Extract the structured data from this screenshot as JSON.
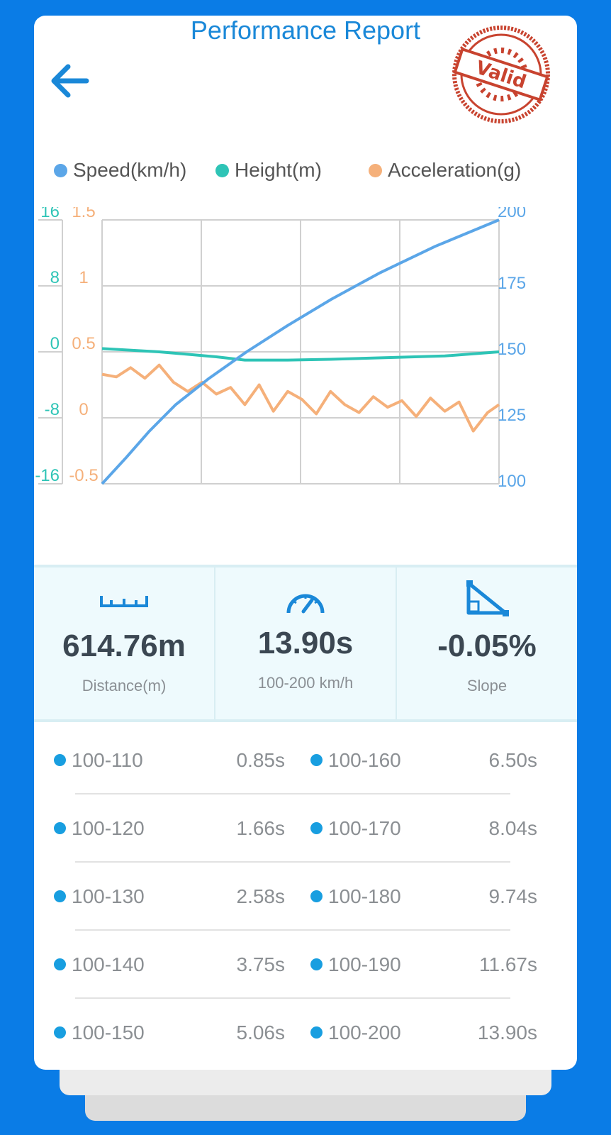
{
  "header": {
    "title": "Performance Report",
    "stamp_text": "Valid"
  },
  "legend": [
    {
      "label": "Speed(km/h)",
      "color": "#5ba6e8"
    },
    {
      "label": "Height(m)",
      "color": "#2ec4b6"
    },
    {
      "label": "Acceleration(g)",
      "color": "#f5b07a"
    }
  ],
  "chart_data": {
    "type": "line",
    "series": [
      {
        "name": "Speed(km/h)",
        "color": "#5ba6e8",
        "axis": "right",
        "x": [
          0,
          0.85,
          1.66,
          2.58,
          3.75,
          5.06,
          6.5,
          8.04,
          9.74,
          11.67,
          13.9
        ],
        "values": [
          100,
          110,
          120,
          130,
          140,
          150,
          160,
          170,
          180,
          190,
          200
        ]
      },
      {
        "name": "Height(m)",
        "color": "#2ec4b6",
        "axis": "left-height",
        "x": [
          0,
          2,
          4,
          5,
          6.5,
          8,
          10,
          12,
          13.9
        ],
        "values": [
          0.4,
          0,
          -0.6,
          -1.0,
          -1.0,
          -0.9,
          -0.7,
          -0.5,
          0
        ]
      },
      {
        "name": "Acceleration(g)",
        "color": "#f5b07a",
        "axis": "left-accel",
        "x": [
          0,
          0.5,
          1,
          1.5,
          2,
          2.5,
          3,
          3.5,
          4,
          4.5,
          5,
          5.5,
          6,
          6.5,
          7,
          7.5,
          8,
          8.5,
          9,
          9.5,
          10,
          10.5,
          11,
          11.5,
          12,
          12.5,
          13,
          13.5,
          13.9
        ],
        "values": [
          0.33,
          0.31,
          0.38,
          0.3,
          0.4,
          0.27,
          0.2,
          0.27,
          0.18,
          0.23,
          0.1,
          0.25,
          0.05,
          0.2,
          0.14,
          0.03,
          0.2,
          0.1,
          0.04,
          0.16,
          0.08,
          0.13,
          0.01,
          0.15,
          0.05,
          0.12,
          -0.1,
          0.04,
          0.1
        ]
      }
    ],
    "axes": {
      "left_height": {
        "range": [
          -16,
          16
        ],
        "ticks": [
          "16",
          "8",
          "0",
          "-8",
          "-16"
        ],
        "color": "#2ec4b6"
      },
      "left_accel": {
        "range": [
          -0.5,
          1.5
        ],
        "ticks": [
          "1.5",
          "1",
          "0.5",
          "0",
          "-0.5"
        ],
        "color": "#f5b07a"
      },
      "right_speed": {
        "range": [
          100,
          200
        ],
        "ticks": [
          "200",
          "175",
          "150",
          "125",
          "100"
        ],
        "color": "#5ba6e8"
      },
      "x_range": [
        0,
        13.9
      ]
    },
    "grid": true
  },
  "stats": [
    {
      "value": "614.76m",
      "label": "Distance(m)",
      "icon": "ruler-icon"
    },
    {
      "value": "13.90s",
      "label": "100-200 km/h",
      "icon": "speedometer-icon"
    },
    {
      "value": "-0.05%",
      "label": "Slope",
      "icon": "slope-icon"
    }
  ],
  "splits": [
    {
      "left": {
        "range": "100-110",
        "time": "0.85s"
      },
      "right": {
        "range": "100-160",
        "time": "6.50s"
      }
    },
    {
      "left": {
        "range": "100-120",
        "time": "1.66s"
      },
      "right": {
        "range": "100-170",
        "time": "8.04s"
      }
    },
    {
      "left": {
        "range": "100-130",
        "time": "2.58s"
      },
      "right": {
        "range": "100-180",
        "time": "9.74s"
      }
    },
    {
      "left": {
        "range": "100-140",
        "time": "3.75s"
      },
      "right": {
        "range": "100-190",
        "time": "11.67s"
      }
    },
    {
      "left": {
        "range": "100-150",
        "time": "5.06s"
      },
      "right": {
        "range": "100-200",
        "time": "13.90s"
      }
    }
  ]
}
